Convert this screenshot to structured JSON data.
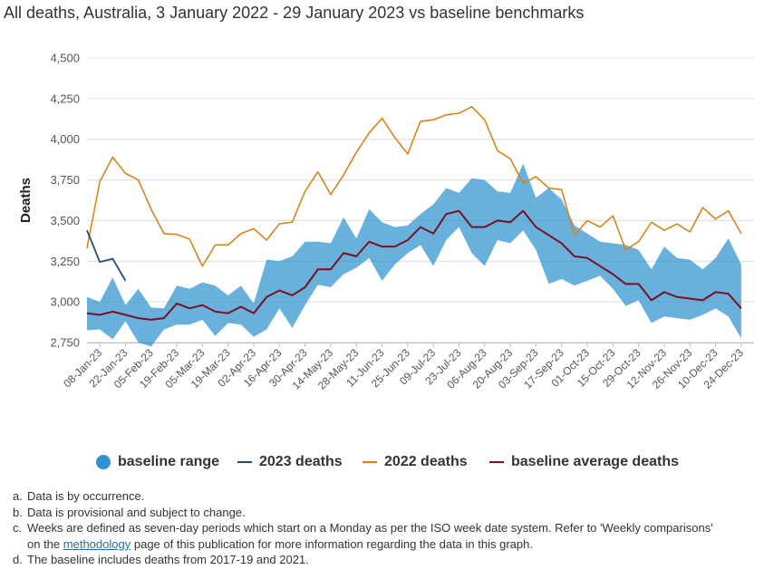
{
  "page_title": "All deaths, Australia, 3 January 2022 - 29 January 2023 vs baseline benchmarks",
  "colors": {
    "band": "#2e93cf",
    "line_2023": "#1f4e79",
    "line_2022": "#d98319",
    "line_avg": "#7a1021",
    "grid": "#dcdcdc"
  },
  "legend": {
    "band": "baseline range",
    "d2023": "2023 deaths",
    "d2022": "2022 deaths",
    "avg": "baseline average deaths"
  },
  "notes": [
    {
      "letter": "a.",
      "text": "Data is by occurrence."
    },
    {
      "letter": "b.",
      "text": "Data is provisional and subject to change."
    },
    {
      "letter": "c.",
      "text_before": "Weeks are defined as seven-day periods which start on a Monday as per the ISO week date system. Refer to 'Weekly comparisons' on the",
      "link": "methodology",
      "text_after": "page of this publication for more information regarding the data in this graph."
    },
    {
      "letter": "d.",
      "text": "The baseline includes deaths from 2017-19 and 2021."
    }
  ],
  "chart_data": {
    "type": "line",
    "title": "All deaths, Australia, 3 January 2022 - 29 January 2023 vs baseline benchmarks",
    "ylabel": "Deaths",
    "xlabel": "",
    "ylim": [
      2750,
      4500
    ],
    "yticks": [
      2750,
      3000,
      3250,
      3500,
      3750,
      4000,
      4250,
      4500
    ],
    "ytick_labels": [
      "2,750",
      "3,000",
      "3,250",
      "3,500",
      "3,750",
      "4,000",
      "4,250",
      "4,500"
    ],
    "grid": true,
    "legend_position": "bottom",
    "x": [
      "01-Jan-23",
      "08-Jan-23",
      "15-Jan-23",
      "22-Jan-23",
      "29-Jan-23",
      "05-Feb-23",
      "12-Feb-23",
      "19-Feb-23",
      "26-Feb-23",
      "05-Mar-23",
      "12-Mar-23",
      "19-Mar-23",
      "26-Mar-23",
      "02-Apr-23",
      "09-Apr-23",
      "16-Apr-23",
      "23-Apr-23",
      "30-Apr-23",
      "07-May-23",
      "14-May-23",
      "21-May-23",
      "28-May-23",
      "04-Jun-23",
      "11-Jun-23",
      "18-Jun-23",
      "25-Jun-23",
      "02-Jul-23",
      "09-Jul-23",
      "16-Jul-23",
      "23-Jul-23",
      "30-Jul-23",
      "06-Aug-23",
      "13-Aug-23",
      "20-Aug-23",
      "27-Aug-23",
      "03-Sep-23",
      "10-Sep-23",
      "17-Sep-23",
      "24-Sep-23",
      "01-Oct-23",
      "08-Oct-23",
      "15-Oct-23",
      "22-Oct-23",
      "29-Oct-23",
      "05-Nov-23",
      "12-Nov-23",
      "19-Nov-23",
      "26-Nov-23",
      "03-Dec-23",
      "10-Dec-23",
      "17-Dec-23",
      "24-Dec-23",
      "31-Dec-23"
    ],
    "x_tick_labels": [
      "08-Jan-23",
      "22-Jan-23",
      "05-Feb-23",
      "19-Feb-23",
      "05-Mar-23",
      "19-Mar-23",
      "02-Apr-23",
      "16-Apr-23",
      "30-Apr-23",
      "14-May-23",
      "28-May-23",
      "11-Jun-23",
      "25-Jun-23",
      "09-Jul-23",
      "23-Jul-23",
      "06-Aug-23",
      "20-Aug-23",
      "03-Sep-23",
      "17-Sep-23",
      "01-Oct-23",
      "15-Oct-23",
      "29-Oct-23",
      "12-Nov-23",
      "26-Nov-23",
      "10-Dec-23",
      "24-Dec-23"
    ],
    "band": {
      "name": "baseline range",
      "low": [
        2825,
        2830,
        2770,
        2880,
        2750,
        2725,
        2830,
        2860,
        2860,
        2890,
        2790,
        2870,
        2860,
        2785,
        2830,
        2960,
        2840,
        2980,
        3105,
        3090,
        3170,
        3210,
        3270,
        3130,
        3230,
        3300,
        3350,
        3220,
        3380,
        3460,
        3300,
        3220,
        3380,
        3360,
        3440,
        3320,
        3110,
        3140,
        3100,
        3130,
        3160,
        3080,
        2975,
        3010,
        2870,
        2910,
        2900,
        2890,
        2920,
        2960,
        2910,
        2775,
        null
      ],
      "high": [
        3030,
        3000,
        3150,
        2980,
        3080,
        2965,
        2960,
        3100,
        3080,
        3120,
        3100,
        3040,
        3100,
        2990,
        3260,
        3250,
        3280,
        3370,
        3370,
        3360,
        3520,
        3390,
        3570,
        3490,
        3460,
        3470,
        3540,
        3600,
        3700,
        3670,
        3760,
        3750,
        3680,
        3670,
        3850,
        3640,
        3700,
        3630,
        3470,
        3420,
        3370,
        3360,
        3350,
        3320,
        3200,
        3340,
        3270,
        3260,
        3200,
        3270,
        3390,
        3230,
        null
      ]
    },
    "series": [
      {
        "name": "2022 deaths",
        "values": [
          3330,
          3740,
          3890,
          3790,
          3750,
          3570,
          3420,
          3415,
          3385,
          3220,
          3350,
          3350,
          3420,
          3450,
          3380,
          3480,
          3490,
          3680,
          3800,
          3660,
          3780,
          3920,
          4040,
          4130,
          4010,
          3910,
          4110,
          4120,
          4150,
          4160,
          4200,
          4120,
          3930,
          3880,
          3730,
          3770,
          3700,
          3690,
          3410,
          3500,
          3460,
          3530,
          3320,
          3370,
          3490,
          3440,
          3480,
          3430,
          3580,
          3510,
          3560,
          3420,
          null
        ]
      },
      {
        "name": "2023 deaths",
        "values": [
          3440,
          3245,
          3265,
          3130,
          null,
          null,
          null,
          null,
          null,
          null,
          null,
          null,
          null,
          null,
          null,
          null,
          null,
          null,
          null,
          null,
          null,
          null,
          null,
          null,
          null,
          null,
          null,
          null,
          null,
          null,
          null,
          null,
          null,
          null,
          null,
          null,
          null,
          null,
          null,
          null,
          null,
          null,
          null,
          null,
          null,
          null,
          null,
          null,
          null,
          null,
          null,
          null,
          null
        ]
      },
      {
        "name": "baseline average deaths",
        "values": [
          2930,
          2920,
          2940,
          2920,
          2900,
          2890,
          2900,
          2990,
          2960,
          2980,
          2940,
          2930,
          2970,
          2930,
          3030,
          3070,
          3040,
          3090,
          3200,
          3200,
          3300,
          3280,
          3370,
          3340,
          3340,
          3380,
          3460,
          3420,
          3540,
          3560,
          3460,
          3460,
          3500,
          3490,
          3560,
          3460,
          3410,
          3360,
          3280,
          3270,
          3220,
          3170,
          3110,
          3110,
          3010,
          3060,
          3030,
          3020,
          3010,
          3060,
          3050,
          2960,
          null
        ]
      }
    ]
  }
}
